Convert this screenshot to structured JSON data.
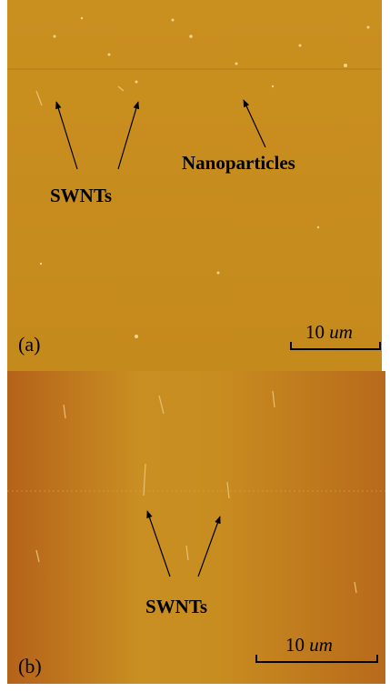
{
  "panels": [
    {
      "label": "(a)",
      "annotations": [
        "SWNTs",
        "Nanoparticles"
      ],
      "scale_bar": {
        "number": "10",
        "unit": "um"
      }
    },
    {
      "label": "(b)",
      "annotations": [
        "SWNTs"
      ],
      "scale_bar": {
        "number": "10",
        "unit": "um"
      }
    }
  ]
}
